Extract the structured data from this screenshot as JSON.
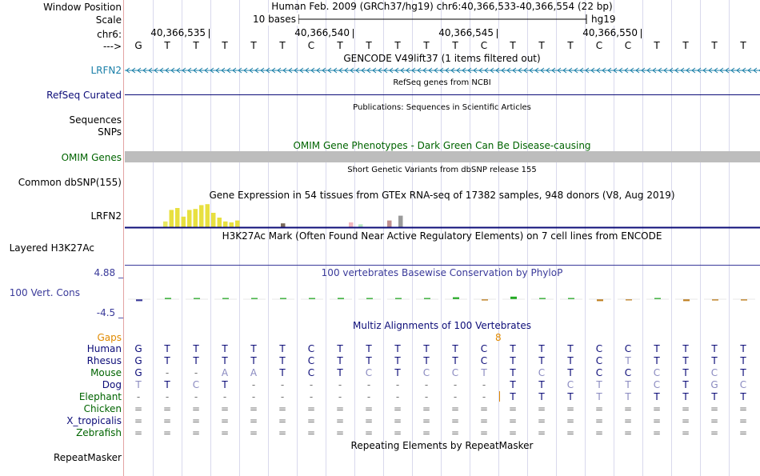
{
  "header": {
    "window_position_label": "Window Position",
    "scale_label": "Scale",
    "chrom_label": "chr6:",
    "strand_label": "--->",
    "assembly_text": "Human Feb. 2009 (GRCh37/hg19)   chr6:40,366,533-40,366,554 (22 bp)",
    "scale_bar_text": "10 bases",
    "scale_assembly": "hg19",
    "ruler_positions": [
      "40,366,535",
      "40,366,540",
      "40,366,545",
      "40,366,550"
    ],
    "sequence": [
      "G",
      "T",
      "T",
      "T",
      "T",
      "T",
      "C",
      "T",
      "T",
      "T",
      "T",
      "T",
      "C",
      "T",
      "T",
      "T",
      "C",
      "C",
      "T",
      "T",
      "T",
      "T"
    ]
  },
  "tracks": {
    "gencode": {
      "title": "GENCODE V49lift37 (1 items filtered out)",
      "label": "LRFN2",
      "color": "#1a7fa8"
    },
    "refseq": {
      "title": "RefSeq genes from NCBI",
      "label": "RefSeq Curated",
      "color": "#0c0c78"
    },
    "publications": {
      "title": "Publications: Sequences in Scientific Articles",
      "label1": "Sequences",
      "label2": "SNPs"
    },
    "omim": {
      "title": "OMIM Gene Phenotypes - Dark Green Can Be Disease-causing",
      "label": "OMIM Genes",
      "color": "#006400",
      "bar_color": "#bdbdbd"
    },
    "dbsnp": {
      "title": "Short Genetic Variants from dbSNP release 155",
      "label": "Common dbSNP(155)"
    },
    "gtex": {
      "title": "Gene Expression in 54 tissues from GTEx RNA-seq of 17382 samples, 948 donors (V8, Aug 2019)",
      "label": "LRFN2",
      "bars": [
        {
          "v": 0.3,
          "c": "#e8e860"
        },
        {
          "v": 0.9,
          "c": "#e8e040"
        },
        {
          "v": 1.0,
          "c": "#e8e040"
        },
        {
          "v": 0.55,
          "c": "#e8e040"
        },
        {
          "v": 0.9,
          "c": "#e8e040"
        },
        {
          "v": 0.95,
          "c": "#e8e040"
        },
        {
          "v": 1.15,
          "c": "#e8e040"
        },
        {
          "v": 1.2,
          "c": "#e8e040"
        },
        {
          "v": 0.75,
          "c": "#e8e040"
        },
        {
          "v": 0.5,
          "c": "#e8e040"
        },
        {
          "v": 0.3,
          "c": "#e8e040"
        },
        {
          "v": 0.25,
          "c": "#e8e040"
        },
        {
          "v": 0.35,
          "c": "#e8e040"
        },
        {
          "v": 0.2,
          "c": "#7a6a5a"
        },
        {
          "v": 0.25,
          "c": "#f2b8c0"
        },
        {
          "v": 0.15,
          "c": "#b8e8c0"
        },
        {
          "v": 0.35,
          "c": "#c09090"
        },
        {
          "v": 0.6,
          "c": "#9a9a9a"
        }
      ]
    },
    "h3k27ac": {
      "title": "H3K27Ac Mark (Often Found Near Active Regulatory Elements) on 7 cell lines from ENCODE",
      "label": "Layered H3K27Ac"
    },
    "phylop": {
      "title": "100 vertebrates Basewise Conservation by PhyloP",
      "label": "100 Vert. Cons",
      "max_label": "4.88 _",
      "min_label": "-4.5 _",
      "color": "#3a3a9a",
      "values": [
        -0.3,
        0.2,
        0.1,
        0,
        0.1,
        0.1,
        0,
        0.2,
        0,
        0,
        0.1,
        0.3,
        -0.2,
        0.4,
        0.1,
        0.1,
        -0.3,
        -0.1,
        0.1,
        -0.3,
        -0.2,
        -0.2
      ]
    },
    "multiz": {
      "title": "Multiz Alignments of 100 Vertebrates",
      "gaps_label": "Gaps",
      "gap_number": "8",
      "species": [
        {
          "name": "Human",
          "color": "#0c0c78",
          "bases": [
            "G",
            "T",
            "T",
            "T",
            "T",
            "T",
            "C",
            "T",
            "T",
            "T",
            "T",
            "T",
            "C",
            "T",
            "T",
            "T",
            "C",
            "C",
            "T",
            "T",
            "T",
            "T"
          ]
        },
        {
          "name": "Rhesus",
          "color": "#0c0c78",
          "bases": [
            "G",
            "T",
            "T",
            "T",
            "T",
            "T",
            "C",
            "T",
            "T",
            "T",
            "T",
            "T",
            "C",
            "T",
            "T",
            "T",
            "C",
            "T",
            "T",
            "T",
            "T",
            "T"
          ]
        },
        {
          "name": "Mouse",
          "color": "#006400",
          "bases": [
            "G",
            "-",
            "-",
            "A",
            "A",
            "T",
            "C",
            "T",
            "C",
            "T",
            "C",
            "C",
            "T",
            "T",
            "C",
            "T",
            "C",
            "C",
            "C",
            "T",
            "C",
            "T"
          ]
        },
        {
          "name": "Dog",
          "color": "#0c0c78",
          "bases": [
            "T",
            "T",
            "C",
            "T",
            "-",
            "-",
            "-",
            "-",
            "-",
            "-",
            "-",
            "-",
            "-",
            "T",
            "T",
            "C",
            "T",
            "T",
            "C",
            "T",
            "G",
            "C"
          ]
        },
        {
          "name": "Elephant",
          "color": "#006400",
          "bases": [
            "-",
            "-",
            "-",
            "-",
            "-",
            "-",
            "-",
            "-",
            "-",
            "-",
            "-",
            "-",
            "-",
            "T",
            "T",
            "T",
            "T",
            "T",
            "T",
            "T",
            "T",
            "T"
          ]
        },
        {
          "name": "Chicken",
          "color": "#006400",
          "bases": [
            "=",
            "=",
            "=",
            "=",
            "=",
            "=",
            "=",
            "=",
            "=",
            "=",
            "=",
            "=",
            "=",
            "=",
            "=",
            "=",
            "=",
            "=",
            "=",
            "=",
            "=",
            "="
          ]
        },
        {
          "name": "X_tropicalis",
          "color": "#0c0c78",
          "bases": [
            "=",
            "=",
            "=",
            "=",
            "=",
            "=",
            "=",
            "=",
            "=",
            "=",
            "=",
            "=",
            "=",
            "=",
            "=",
            "=",
            "=",
            "=",
            "=",
            "=",
            "=",
            "="
          ]
        },
        {
          "name": "Zebrafish",
          "color": "#006400",
          "bases": [
            "=",
            "=",
            "=",
            "=",
            "=",
            "=",
            "=",
            "=",
            "=",
            "=",
            "=",
            "=",
            "=",
            "=",
            "=",
            "=",
            "=",
            "=",
            "=",
            "=",
            "=",
            "="
          ]
        }
      ]
    },
    "repeatmasker": {
      "title": "Repeating Elements by RepeatMasker",
      "label": "RepeatMasker"
    }
  }
}
